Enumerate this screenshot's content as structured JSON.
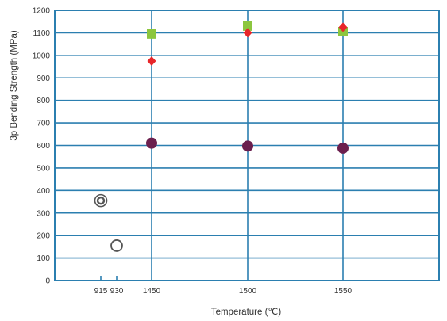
{
  "chart_data": {
    "type": "scatter",
    "xlabel": "Temperature (℃)",
    "ylabel": "3p Bending Strength (MPa)",
    "ylim": [
      0,
      1200
    ],
    "yticks": [
      0,
      100,
      200,
      300,
      400,
      500,
      600,
      700,
      800,
      900,
      1000,
      1100,
      1200
    ],
    "xticks": [
      {
        "label": "915",
        "value": 915
      },
      {
        "label": "930",
        "value": 930
      },
      {
        "label": "1450",
        "value": 1450
      },
      {
        "label": "1500",
        "value": 1500
      },
      {
        "label": "1550",
        "value": 1550
      }
    ],
    "grid": true,
    "colors": {
      "grid": "#2b7fb0",
      "square": "#8cc63f",
      "diamond": "#e8262a",
      "circle": "#6b1f4e",
      "ring": "#555555"
    },
    "series": [
      {
        "marker": "square",
        "points": [
          {
            "x": 1450,
            "y": 1095
          },
          {
            "x": 1500,
            "y": 1130
          },
          {
            "x": 1550,
            "y": 1105
          }
        ]
      },
      {
        "marker": "diamond",
        "points": [
          {
            "x": 1450,
            "y": 975
          },
          {
            "x": 1500,
            "y": 1100
          },
          {
            "x": 1550,
            "y": 1125
          }
        ]
      },
      {
        "marker": "circle",
        "points": [
          {
            "x": 1450,
            "y": 610
          },
          {
            "x": 1500,
            "y": 597
          },
          {
            "x": 1550,
            "y": 588
          }
        ]
      },
      {
        "marker": "double-ring",
        "points": [
          {
            "x": 915,
            "y": 355
          }
        ]
      },
      {
        "marker": "ring",
        "points": [
          {
            "x": 930,
            "y": 155
          }
        ]
      }
    ]
  }
}
